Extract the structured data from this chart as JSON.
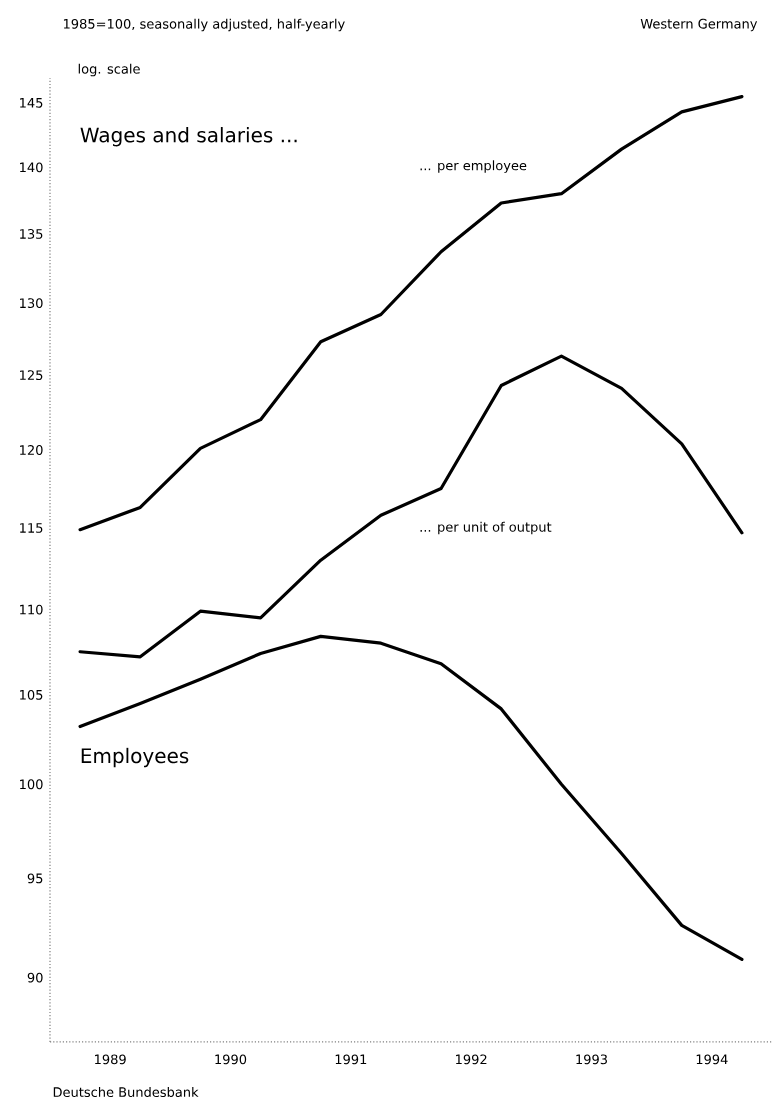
{
  "chart_data": {
    "type": "line",
    "title": "1985=100, seasonally adjusted, half-yearly",
    "subtitle": "Western Germany",
    "ylabel": "log. scale",
    "annotations": [
      "Wages and salaries ...",
      "Deutsche Bundesbank"
    ],
    "x": [
      1989.25,
      1989.75,
      1990.25,
      1990.75,
      1991.25,
      1991.75,
      1992.25,
      1992.75,
      1993.25,
      1993.75,
      1994.25,
      1994.75
    ],
    "series": [
      {
        "name": "... per employee",
        "color": "#000000",
        "values": [
          114.9,
          116.3,
          120.1,
          122.0,
          127.3,
          129.2,
          133.7,
          137.3,
          138.0,
          141.4,
          144.3,
          145.5
        ]
      },
      {
        "name": "... per unit of output",
        "color": "#000000",
        "values": [
          107.5,
          107.2,
          109.9,
          109.5,
          113.0,
          115.8,
          117.5,
          124.3,
          126.3,
          124.1,
          120.4,
          114.7
        ]
      },
      {
        "name": "Employees",
        "color": "#000000",
        "values": [
          103.2,
          104.5,
          105.9,
          107.4,
          108.4,
          108.0,
          106.8,
          104.2,
          100.0,
          96.3,
          92.6,
          90.9
        ]
      }
    ],
    "xlim": [
      1989,
      1995
    ],
    "ylim": [
      86.9,
      147
    ],
    "xticks": [
      {
        "value": 1989.5,
        "label": "1989"
      },
      {
        "value": 1990.5,
        "label": "1990"
      },
      {
        "value": 1991.5,
        "label": "1991"
      },
      {
        "value": 1992.5,
        "label": "1992"
      },
      {
        "value": 1993.5,
        "label": "1993"
      },
      {
        "value": 1994.5,
        "label": "1994"
      }
    ],
    "yticks": [
      90,
      95,
      100,
      105,
      110,
      115,
      120,
      125,
      130,
      135,
      140,
      145
    ],
    "log": true,
    "line_style": "solid"
  }
}
